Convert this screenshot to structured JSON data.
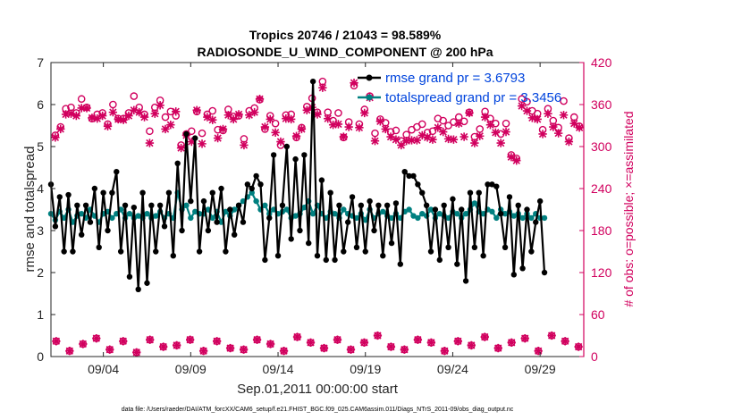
{
  "chart_data": {
    "type": "line",
    "title_line1": "Tropics 20746 / 21043 = 98.589%",
    "title_line2": "RADIOSONDE_U_WIND_COMPONENT @ 200 hPa",
    "xlabel": "Sep.01,2011 00:00:00 start",
    "ylabel_left": "rmse and totalspread",
    "ylabel_right": "# of obs: o=possible; ×=assimilated",
    "ylim_left": [
      0,
      7
    ],
    "ylim_right": [
      0,
      420
    ],
    "yticks_left": [
      "0",
      "1",
      "2",
      "3",
      "4",
      "5",
      "6",
      "7"
    ],
    "yticks_right": [
      "0",
      "60",
      "120",
      "180",
      "240",
      "300",
      "360",
      "420"
    ],
    "xlim_days": [
      0,
      30.5
    ],
    "xticks": [
      {
        "label": "09/04",
        "day": 3
      },
      {
        "label": "09/09",
        "day": 8
      },
      {
        "label": "09/14",
        "day": 13
      },
      {
        "label": "09/19",
        "day": 18
      },
      {
        "label": "09/24",
        "day": 23
      },
      {
        "label": "09/29",
        "day": 28
      }
    ],
    "step_days": 0.25,
    "legend": [
      {
        "label": "rmse grand pr = 3.6793",
        "color": "#000000"
      },
      {
        "label": "totalspread grand pr = 3.3456",
        "color": "#008080"
      }
    ],
    "series": [
      {
        "name": "rmse",
        "color": "#000000",
        "values": [
          4.1,
          3.1,
          3.8,
          2.5,
          3.85,
          2.5,
          3.6,
          2.9,
          3.6,
          3.2,
          4.0,
          2.6,
          3.9,
          3.0,
          3.9,
          4.4,
          2.5,
          3.6,
          1.9,
          3.55,
          1.6,
          3.9,
          1.75,
          3.6,
          2.5,
          3.6,
          3.1,
          3.9,
          2.4,
          4.6,
          3.0,
          5.3,
          3.7,
          5.2,
          2.5,
          3.7,
          3.0,
          3.9,
          3.2,
          4.0,
          2.5,
          3.5,
          2.9,
          3.6,
          3.2,
          4.1,
          4.0,
          4.3,
          4.1,
          2.3,
          3.3,
          4.8,
          2.4,
          3.6,
          5.0,
          2.8,
          4.7,
          3.0,
          4.8,
          2.7,
          6.55,
          2.4,
          4.2,
          2.3,
          3.9,
          2.3,
          3.6,
          2.5,
          3.2,
          3.8,
          2.6,
          3.6,
          2.5,
          3.7,
          3.0,
          3.6,
          2.4,
          3.6,
          2.7,
          3.65,
          2.2,
          4.4,
          4.3,
          4.3,
          4.1,
          3.9,
          3.6,
          2.5,
          3.5,
          2.3,
          3.6,
          2.6,
          3.75,
          2.2,
          3.5,
          1.8,
          3.9,
          2.6,
          3.9,
          2.4,
          4.1,
          4.1,
          4.05,
          3.4,
          2.6,
          3.8,
          1.95,
          3.6,
          2.1,
          3.5,
          2.5,
          3.2,
          3.7,
          2.0
        ]
      },
      {
        "name": "totalspread",
        "color": "#008080",
        "values": [
          3.4,
          3.25,
          3.45,
          3.3,
          3.5,
          3.2,
          3.35,
          3.4,
          3.3,
          3.5,
          3.35,
          3.2,
          3.4,
          3.45,
          3.3,
          3.4,
          3.5,
          3.3,
          3.4,
          3.3,
          3.35,
          3.3,
          3.4,
          3.3,
          3.35,
          3.45,
          3.3,
          3.4,
          3.3,
          3.9,
          3.5,
          3.6,
          3.3,
          3.45,
          3.4,
          3.4,
          3.5,
          3.3,
          3.45,
          3.2,
          3.45,
          3.35,
          3.5,
          3.6,
          3.7,
          3.8,
          3.9,
          3.7,
          3.5,
          3.6,
          3.4,
          3.5,
          3.4,
          3.45,
          3.5,
          3.3,
          3.35,
          3.4,
          3.55,
          3.7,
          3.4,
          3.6,
          3.4,
          3.3,
          3.45,
          3.4,
          3.3,
          3.5,
          3.4,
          3.35,
          3.3,
          3.4,
          3.25,
          3.5,
          3.3,
          3.4,
          3.45,
          3.35,
          3.3,
          3.4,
          3.3,
          3.45,
          3.5,
          3.35,
          3.3,
          3.4,
          3.35,
          3.5,
          3.3,
          3.4,
          3.35,
          3.3,
          3.45,
          3.4,
          3.3,
          3.4,
          3.5,
          3.65,
          3.45,
          3.4,
          3.5,
          3.45,
          3.3,
          3.5,
          3.4,
          3.45,
          3.35,
          3.4,
          3.3,
          3.4,
          3.3,
          3.4,
          3.3,
          3.3
        ]
      },
      {
        "name": "possible",
        "axis": "right",
        "marker": "o",
        "color": "#d1005e",
        "values": [
          316,
          328,
          354,
          356,
          348,
          368,
          356,
          340,
          346,
          348,
          332,
          360,
          340,
          340,
          348,
          372,
          356,
          346,
          322,
          356,
          366,
          342,
          350,
          344,
          302,
          318,
          322,
          350,
          319,
          346,
          351,
          324,
          323,
          353,
          343,
          344,
          311,
          351,
          355,
          367,
          325,
          344,
          333,
          302,
          345,
          346,
          313,
          327,
          357,
          369,
          349,
          393,
          349,
          337,
          348,
          313,
          335,
          387,
          332,
          353,
          372,
          319,
          339,
          334,
          321,
          323,
          308,
          317,
          324,
          328,
          332,
          320,
          322,
          340,
          337,
          330,
          335,
          342,
          336,
          349,
          314,
          325,
          350,
          340,
          333,
          318,
          333,
          288,
          283,
          368,
          364,
          351,
          347,
          324,
          354,
          337,
          327,
          365,
          312,
          342,
          329
        ]
      },
      {
        "name": "assimilated",
        "axis": "right",
        "marker": "x",
        "color": "#d1005e",
        "values": [
          313,
          325,
          346,
          347,
          344,
          355,
          355,
          341,
          340,
          344,
          329,
          349,
          339,
          338,
          344,
          352,
          349,
          342,
          305,
          347,
          359,
          325,
          331,
          350,
          298,
          316,
          307,
          352,
          304,
          342,
          338,
          312,
          325,
          345,
          339,
          346,
          302,
          345,
          349,
          368,
          328,
          339,
          320,
          307,
          340,
          339,
          315,
          325,
          352,
          356,
          346,
          384,
          340,
          331,
          332,
          314,
          328,
          391,
          327,
          348,
          370,
          308,
          336,
          325,
          314,
          310,
          302,
          308,
          309,
          309,
          316,
          313,
          310,
          327,
          321,
          311,
          310,
          333,
          314,
          348,
          305,
          315,
          342,
          331,
          320,
          305,
          321,
          285,
          280,
          358,
          351,
          341,
          339,
          318,
          347,
          328,
          319,
          345,
          307,
          333,
          327
        ]
      },
      {
        "name": "possible_low",
        "axis": "right",
        "marker": "o",
        "color": "#d1005e",
        "values": [
          22,
          8,
          18,
          26,
          10,
          22,
          6,
          24,
          14,
          16,
          24,
          8,
          22,
          12,
          10,
          24,
          18,
          8,
          28,
          20,
          12,
          24,
          10,
          20,
          30,
          14,
          10,
          24,
          20,
          8,
          22,
          16,
          28,
          12,
          20,
          26,
          8,
          30,
          22,
          14
        ]
      },
      {
        "name": "assimilated_low",
        "axis": "right",
        "marker": "x",
        "color": "#d1005e",
        "values": [
          22,
          8,
          18,
          26,
          10,
          22,
          6,
          24,
          14,
          16,
          24,
          8,
          22,
          12,
          10,
          24,
          18,
          8,
          28,
          20,
          12,
          24,
          10,
          20,
          30,
          14,
          10,
          24,
          20,
          8,
          22,
          16,
          28,
          12,
          20,
          26,
          8,
          30,
          22,
          14
        ]
      }
    ],
    "footnote": "data file: /Users/raeder/DAI/ATM_forcXX/CAM6_setup/f.e21.FHIST_BGC.f09_025.CAM6assim.011/Diags_NTrS_2011-09/obs_diag_output.nc"
  }
}
